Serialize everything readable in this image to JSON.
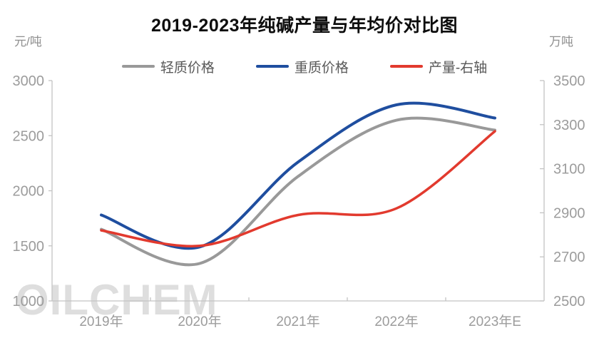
{
  "chart_data": {
    "type": "line",
    "title": "2019-2023年纯碱产量与年均价对比图",
    "categories": [
      "2019年",
      "2020年",
      "2021年",
      "2022年",
      "2023年E"
    ],
    "series": [
      {
        "name": "轻质价格",
        "axis": "left",
        "color": "#999999",
        "width": 4,
        "values": [
          1650,
          1340,
          2130,
          2640,
          2550
        ]
      },
      {
        "name": "重质价格",
        "axis": "left",
        "color": "#1f4e9f",
        "width": 4,
        "values": [
          1780,
          1490,
          2260,
          2780,
          2660
        ]
      },
      {
        "name": "产量-右轴",
        "axis": "right",
        "color": "#e23a2e",
        "width": 3.5,
        "values": [
          2820,
          2750,
          2890,
          2920,
          3270
        ]
      }
    ],
    "left_axis": {
      "unit": "元/吨",
      "min": 1000,
      "max": 3000,
      "ticks": [
        3000,
        2500,
        2000,
        1500,
        1000
      ]
    },
    "right_axis": {
      "unit": "万吨",
      "min": 2500,
      "max": 3500,
      "ticks": [
        3500,
        3300,
        3100,
        2900,
        2700,
        2500
      ]
    },
    "legend_position": "top",
    "grid": "off",
    "watermark": "OILCHEM"
  }
}
